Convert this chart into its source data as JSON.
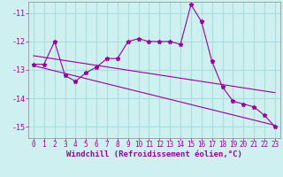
{
  "xlabel": "Windchill (Refroidissement éolien,°C)",
  "background_color": "#cff0f0",
  "grid_color": "#aadddd",
  "line_color": "#990099",
  "x_hours": [
    0,
    1,
    2,
    3,
    4,
    5,
    6,
    7,
    8,
    9,
    10,
    11,
    12,
    13,
    14,
    15,
    16,
    17,
    18,
    19,
    20,
    21,
    22,
    23
  ],
  "windchill": [
    -12.8,
    -12.8,
    -12.0,
    -13.2,
    -13.4,
    -13.1,
    -12.9,
    -12.6,
    -12.6,
    -12.0,
    -11.9,
    -12.0,
    -12.0,
    -12.0,
    -12.1,
    -10.7,
    -11.3,
    -12.7,
    -13.6,
    -14.1,
    -14.2,
    -14.3,
    -14.6,
    -15.0
  ],
  "trend1_x": [
    0,
    23
  ],
  "trend1_y": [
    -12.5,
    -13.8
  ],
  "trend2_x": [
    0,
    23
  ],
  "trend2_y": [
    -12.85,
    -14.95
  ],
  "ylim": [
    -15.4,
    -10.6
  ],
  "yticks": [
    -15,
    -14,
    -13,
    -12,
    -11
  ],
  "xticks": [
    0,
    1,
    2,
    3,
    4,
    5,
    6,
    7,
    8,
    9,
    10,
    11,
    12,
    13,
    14,
    15,
    16,
    17,
    18,
    19,
    20,
    21,
    22,
    23
  ],
  "tick_fontsize": 5.5,
  "label_fontsize": 6.5
}
